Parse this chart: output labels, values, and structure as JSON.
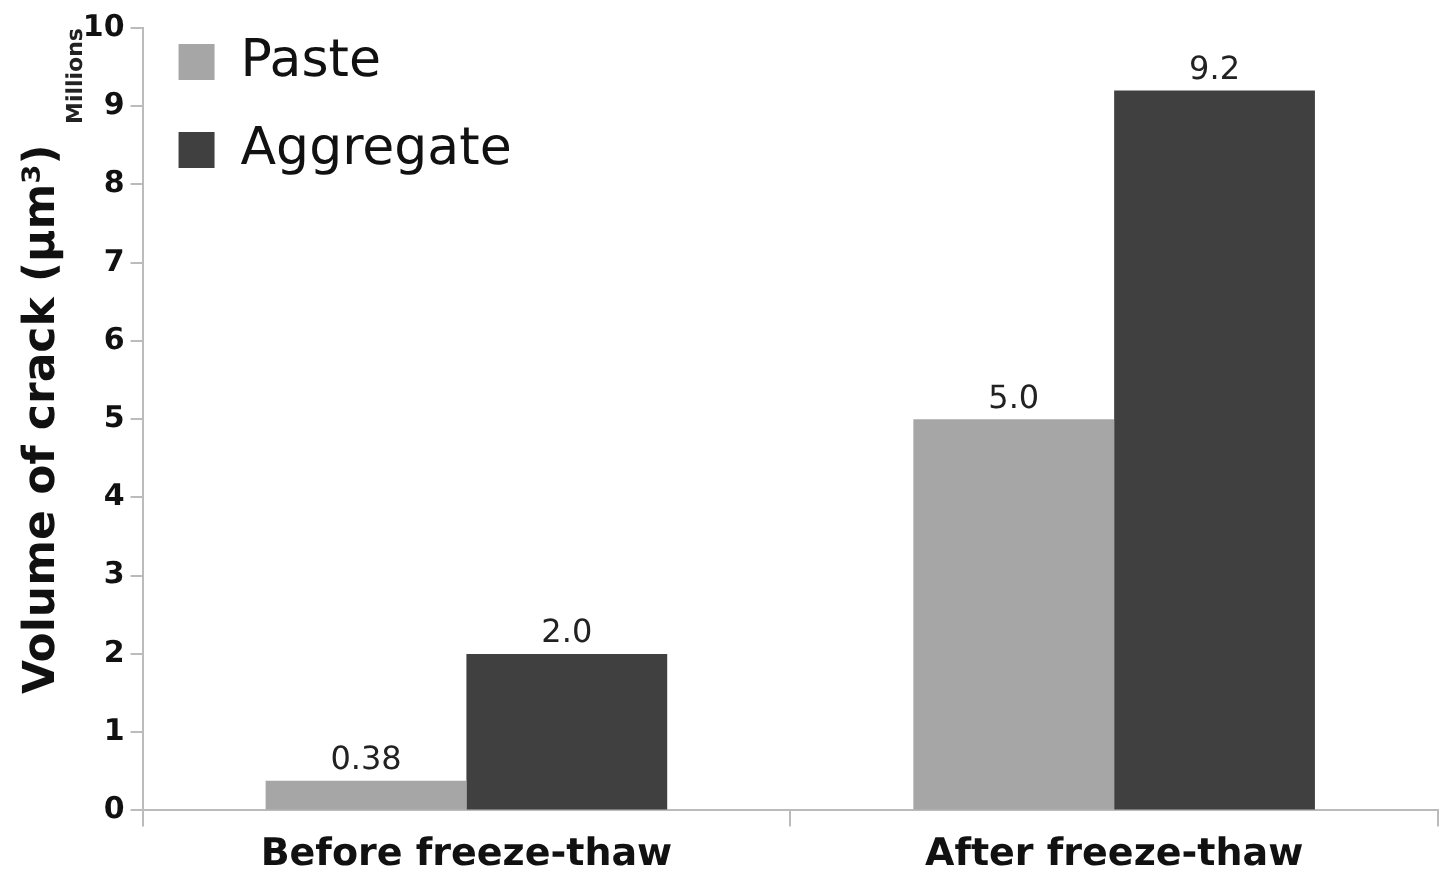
{
  "chart_data": {
    "type": "bar",
    "ylabel": "Volume of crack (μm³)",
    "annotations": [
      "Millions"
    ],
    "categories": [
      "Before freeze-thaw",
      "After freeze-thaw"
    ],
    "series": [
      {
        "name": "Paste",
        "color": "#a6a6a6",
        "values": [
          0.38,
          5.0
        ],
        "value_labels": [
          "0.38",
          "5.0"
        ]
      },
      {
        "name": "Aggregate",
        "color": "#404040",
        "values": [
          2.0,
          9.2
        ],
        "value_labels": [
          "2.0",
          "9.2"
        ]
      }
    ],
    "ylim": [
      0,
      10
    ],
    "yticks": [
      0,
      1,
      2,
      3,
      4,
      5,
      6,
      7,
      8,
      9,
      10
    ],
    "grid": false,
    "legend": "top left"
  }
}
